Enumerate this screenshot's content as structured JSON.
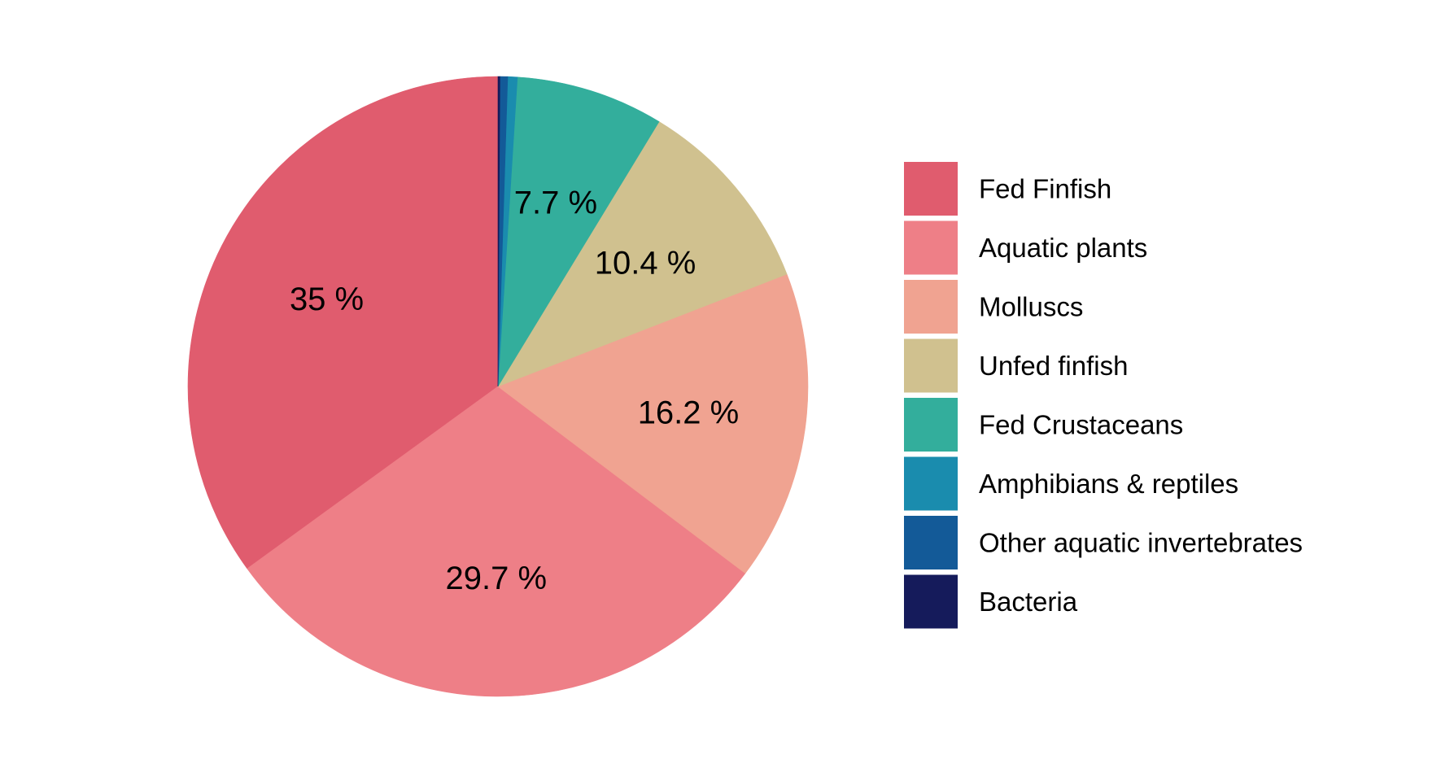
{
  "chart_data": {
    "type": "pie",
    "title": "",
    "start_angle": "12 o'clock",
    "direction": "counterclockwise",
    "legend_position": "right",
    "slices": [
      {
        "name": "Fed Finfish",
        "value": 35.0,
        "label": "35 %",
        "color": "#E05C6E"
      },
      {
        "name": "Aquatic plants",
        "value": 29.7,
        "label": "29.7 %",
        "color": "#EE7F87"
      },
      {
        "name": "Molluscs",
        "value": 16.2,
        "label": "16.2 %",
        "color": "#F0A391"
      },
      {
        "name": "Unfed finfish",
        "value": 10.4,
        "label": "10.4 %",
        "color": "#D0C18F"
      },
      {
        "name": "Fed Crustaceans",
        "value": 7.7,
        "label": "7.7 %",
        "color": "#33AE9C"
      },
      {
        "name": "Amphibians & reptiles",
        "value": 0.5,
        "label": "",
        "color": "#1A8CAE"
      },
      {
        "name": "Other aquatic invertebrates",
        "value": 0.4,
        "label": "",
        "color": "#135A98"
      },
      {
        "name": "Bacteria",
        "value": 0.1,
        "label": "",
        "color": "#151B5B"
      }
    ]
  }
}
